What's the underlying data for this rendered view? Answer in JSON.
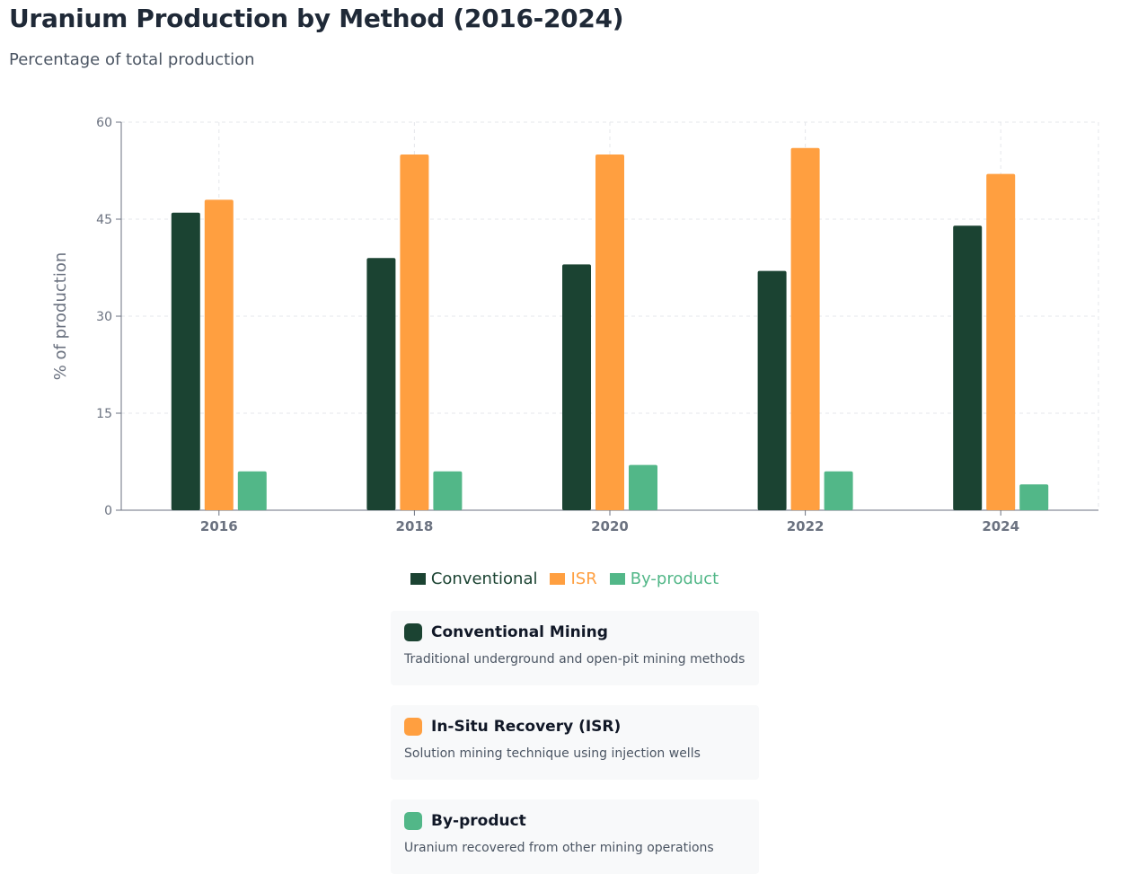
{
  "header": {
    "title": "Uranium Production by Method (2016-2024)",
    "subtitle": "Percentage of total production"
  },
  "colors": {
    "conventional": "#1b4332",
    "isr": "#ff9f40",
    "byproduct": "#52b788"
  },
  "chart_data": {
    "type": "bar",
    "categories": [
      "2016",
      "2018",
      "2020",
      "2022",
      "2024"
    ],
    "series": [
      {
        "name": "Conventional",
        "values": [
          46,
          39,
          38,
          37,
          44
        ]
      },
      {
        "name": "ISR",
        "values": [
          48,
          55,
          55,
          56,
          52
        ]
      },
      {
        "name": "By-product",
        "values": [
          6,
          6,
          7,
          6,
          4
        ]
      }
    ],
    "ylabel": "% of production",
    "ylim": [
      0,
      60
    ],
    "yticks": [
      "0",
      "15",
      "30",
      "45",
      "60"
    ],
    "grid": true,
    "legend_position": "bottom"
  },
  "legend": [
    {
      "label": "Conventional"
    },
    {
      "label": "ISR"
    },
    {
      "label": "By-product"
    }
  ],
  "cards": [
    {
      "title": "Conventional Mining",
      "description": "Traditional underground and open-pit mining methods"
    },
    {
      "title": "In-Situ Recovery (ISR)",
      "description": "Solution mining technique using injection wells"
    },
    {
      "title": "By-product",
      "description": "Uranium recovered from other mining operations"
    }
  ]
}
